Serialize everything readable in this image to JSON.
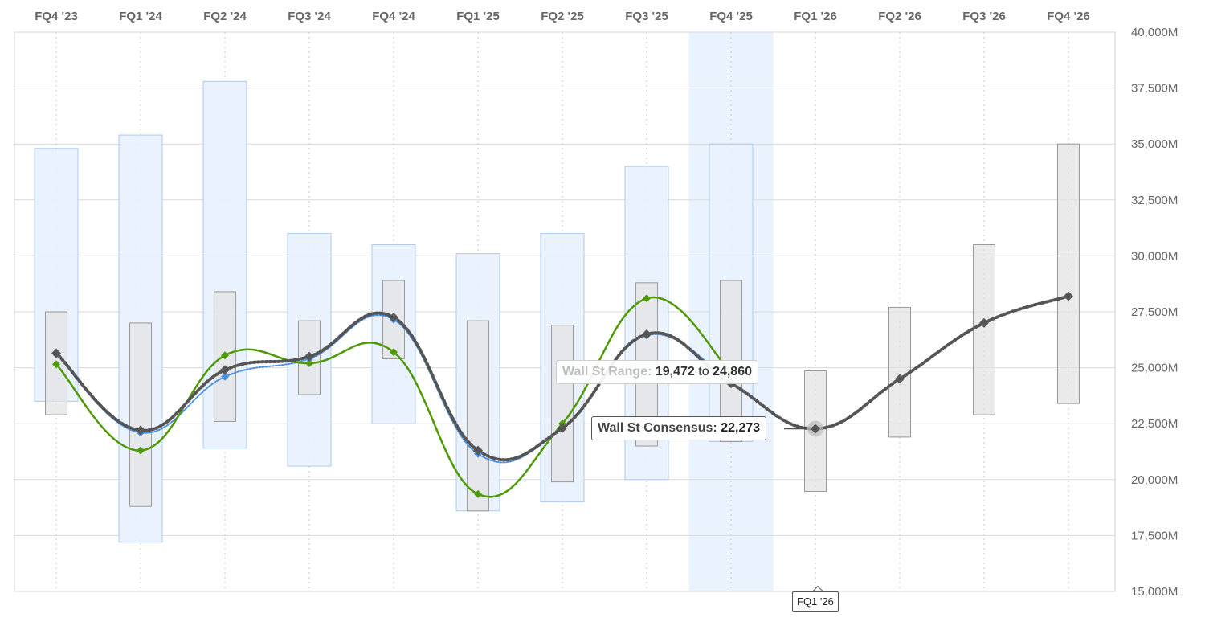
{
  "chart_data": {
    "type": "line",
    "categories": [
      "FQ4 '23",
      "FQ1 '24",
      "FQ2 '24",
      "FQ3 '24",
      "FQ4 '24",
      "FQ1 '25",
      "FQ2 '25",
      "FQ3 '25",
      "FQ4 '25",
      "FQ1 '26",
      "FQ2 '26",
      "FQ3 '26",
      "FQ4 '26"
    ],
    "y_ticks": [
      "15,000M",
      "17,500M",
      "20,000M",
      "22,500M",
      "25,000M",
      "27,500M",
      "30,000M",
      "32,500M",
      "35,000M",
      "37,500M",
      "40,000M"
    ],
    "ylim": [
      15000,
      40000
    ],
    "unit": "M",
    "highlighted_category": "FQ4 '25",
    "company_range": {
      "categories": [
        "FQ4 '23",
        "FQ1 '24",
        "FQ2 '24",
        "FQ3 '24",
        "FQ4 '24",
        "FQ1 '25",
        "FQ2 '25",
        "FQ3 '25",
        "FQ4 '25"
      ],
      "low": [
        23500,
        17200,
        21400,
        20600,
        22500,
        18600,
        19000,
        20000,
        21700
      ],
      "high": [
        34800,
        35400,
        37800,
        31000,
        30500,
        30100,
        31000,
        34000,
        35000
      ]
    },
    "wall_st_range": {
      "low": [
        22900,
        18800,
        22600,
        23800,
        25400,
        18600,
        19900,
        21500,
        21700,
        19472,
        21900,
        22900,
        23400
      ],
      "high": [
        27500,
        27000,
        28400,
        27100,
        28900,
        27100,
        26900,
        28800,
        28900,
        24860,
        27700,
        30500,
        35000
      ]
    },
    "series": [
      {
        "name": "Wall St Consensus",
        "values": [
          25650,
          22200,
          24900,
          25500,
          27250,
          21300,
          22300,
          26500,
          24300,
          22273,
          24500,
          27000,
          28200
        ]
      },
      {
        "values": [
          25150,
          21300,
          25550,
          25200,
          25700,
          19350,
          22500,
          28100,
          24800,
          null,
          null,
          null,
          null
        ]
      },
      {
        "values": [
          25600,
          22100,
          24600,
          25400,
          27150,
          21150,
          22300,
          26450,
          24300,
          null,
          null,
          null,
          null
        ]
      }
    ],
    "colors": {
      "company_range_fill": "#e9f2fd",
      "company_range_stroke": "#a9c9ee",
      "wall_st_range_fill": "#e3e3e3",
      "wall_st_range_stroke": "#9a9a9a",
      "consensus": "#555555",
      "actual": "#4e9a06",
      "guidance": "#4a90e2",
      "highlight_band": "#eaf3fd",
      "grid": "#d9d9d9",
      "axis_text": "#666666"
    }
  },
  "tooltips": {
    "range_label": "Wall St Range:",
    "range_low": "19,472",
    "range_to": "to",
    "range_high": "24,860",
    "consensus_label": "Wall St Consensus:",
    "consensus_value": "22,273",
    "axis_label": "FQ1 '26"
  }
}
